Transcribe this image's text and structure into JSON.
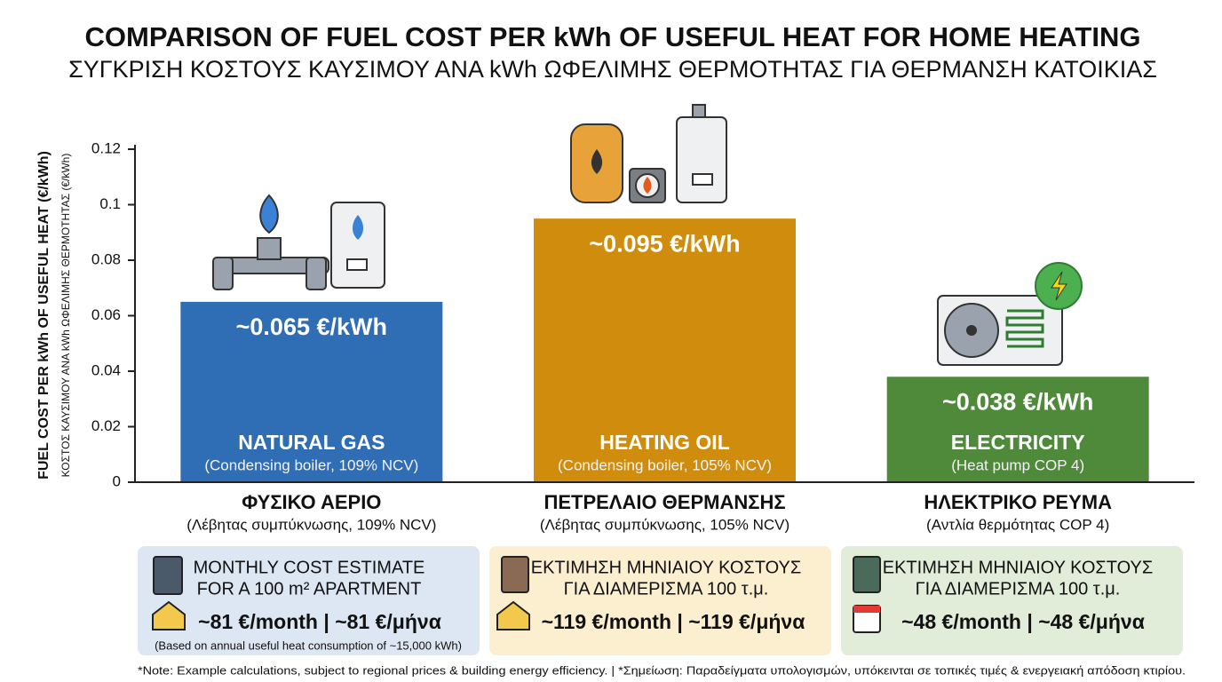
{
  "chart_data": {
    "type": "bar",
    "title": "COMPARISON OF FUEL COST PER kWh OF USEFUL HEAT FOR HOME HEATING",
    "subtitle": "ΣΥΓΚΡΙΣΗ ΚΟΣΤΟΥΣ ΚΑΥΣΙΜΟΥ ΑΝΑ kWh ΩΦΕΛΙΜΗΣ ΘΕΡΜΟΤΗΤΑΣ ΓΙΑ ΘΕΡΜΑΝΣΗ ΚΑΤΟΙΚΙΑΣ",
    "y_label": "FUEL COST PER kWh OF USEFUL HEAT (€/kWh)",
    "y_label_greek": "ΚΟΣΤΟΣ ΚΑΥΣΙΜΟΥ ΑΝΑ kWh ΩΦΕΛΙΜΗΣ ΘΕΡΜΟΤΗΤΑΣ (€/kWh)",
    "categories": [
      "NATURAL GAS",
      "HEATING OIL",
      "ELECTRICITY"
    ],
    "category_notes": [
      "(Condensing boiler, 109% NCV)",
      "(Condensing boiler, 105% NCV)",
      "(Heat pump COP 4)"
    ],
    "categories_greek": [
      "ΦΥΣΙΚΟ ΑΕΡΙΟ",
      "ΠΕΤΡΕΛΑΙΟ ΘΕΡΜΑΝΣΗΣ",
      "ΗΛΕΚΤΡΙΚΟ ΡΕΥΜΑ"
    ],
    "category_notes_greek": [
      "(Λέβητας συμπύκνωσης, 109% NCV)",
      "(Λέβητας συμπύκνωσης, 105% NCV)",
      "(Αντλία θερμότητας COP 4)"
    ],
    "values": [
      0.065,
      0.095,
      0.038
    ],
    "value_labels": [
      "~0.065 €/kWh",
      "~0.095 €/kWh",
      "~0.038 €/kWh"
    ],
    "colors": [
      "#2f6db5",
      "#d08c0c",
      "#4f8a3a"
    ],
    "ylim": [
      0,
      0.12
    ],
    "yticks": [
      0,
      0.02,
      0.04,
      0.06,
      0.08,
      0.1,
      0.12
    ]
  },
  "cost_boxes": [
    {
      "title_lines": [
        "MONTHLY COST ESTIMATE",
        "FOR A 100 m² APARTMENT"
      ],
      "cost": "~81 €/month | ~81 €/μήνα",
      "note": "(Based on annual useful heat consumption of ~15,000 kWh)"
    },
    {
      "title_lines": [
        "ΕΚΤΙΜΗΣΗ ΜΗΝΙΑΙΟΥ ΚΟΣΤΟΥΣ",
        "ΓΙΑ ΔΙΑΜΕΡΙΣΜΑ 100 τ.μ."
      ],
      "cost": "~119 €/month | ~119 €/μήνα"
    },
    {
      "title_lines": [
        "ΕΚΤΙΜΗΣΗ ΜΗΝΙΑΙΟΥ ΚΟΣΤΟΥΣ",
        "ΓΙΑ ΔΙΑΜΕΡΙΣΜΑ 100 τ.μ."
      ],
      "cost": "~48 €/month | ~48 €/μήνα"
    }
  ],
  "footnote": "*Note: Example calculations, subject to regional prices & building energy efficiency. | *Σημείωση: Παραδείγματα υπολογισμών, υπόκεινται σε τοπικές τιμές & ενεργειακή απόδοση κτιρίου."
}
